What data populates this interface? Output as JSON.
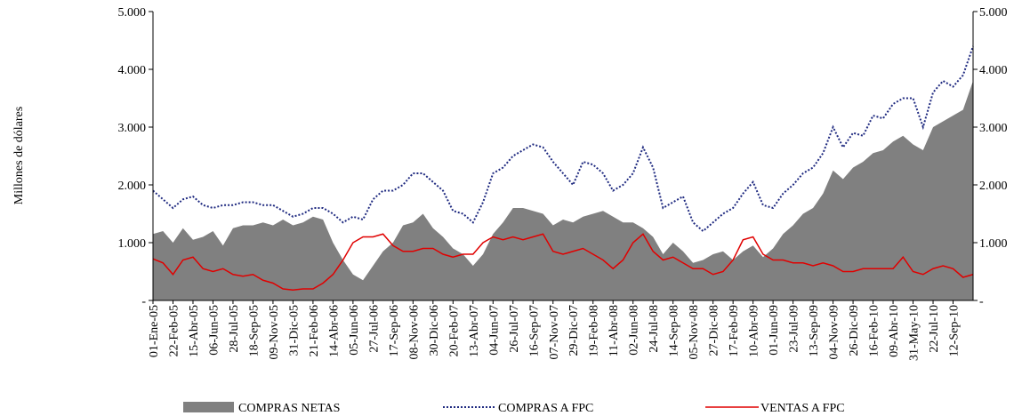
{
  "chart_data": {
    "type": "line",
    "y_label": "Millones de dólares",
    "categories": [
      "01-Ene-05",
      null,
      "22-Feb-05",
      null,
      "15-Abr-05",
      null,
      "06-Jun-05",
      null,
      "28-Jul-05",
      null,
      "18-Sep-05",
      null,
      "09-Nov-05",
      null,
      "31-Dic-05",
      null,
      "21-Feb-06",
      null,
      "14-Abr-06",
      null,
      "05-Jun-06",
      null,
      "27-Jul-06",
      null,
      "17-Sep-06",
      null,
      "08-Nov-06",
      null,
      "30-Dic-06",
      null,
      "20-Feb-07",
      null,
      "13-Abr-07",
      null,
      "04-Jun-07",
      null,
      "26-Jul-07",
      null,
      "16-Sep-07",
      null,
      "07-Nov-07",
      null,
      "29-Dic-07",
      null,
      "19-Feb-08",
      null,
      "11-Abr-08",
      null,
      "02-Jun-08",
      null,
      "24-Jul-08",
      null,
      "14-Sep-08",
      null,
      "05-Nov-08",
      null,
      "27-Dic-08",
      null,
      "17-Feb-09",
      null,
      "10-Abr-09",
      null,
      "01-Jun-09",
      null,
      "23-Jul-09",
      null,
      "13-Sep-09",
      null,
      "04-Nov-09",
      null,
      "26-Dic-09",
      null,
      "16-Feb-10",
      null,
      "09-Abr-10",
      null,
      "31-May-10",
      null,
      "22-Jul-10",
      null,
      "12-Sep-10",
      null,
      null
    ],
    "series": [
      {
        "name": "COMPRAS NETAS",
        "color": "#808080",
        "style": "area",
        "values": [
          1150,
          1200,
          1000,
          1250,
          1050,
          1100,
          1200,
          950,
          1250,
          1300,
          1300,
          1350,
          1300,
          1400,
          1300,
          1350,
          1450,
          1400,
          1000,
          700,
          450,
          350,
          600,
          850,
          1000,
          1300,
          1350,
          1500,
          1250,
          1100,
          900,
          800,
          600,
          800,
          1150,
          1350,
          1600,
          1600,
          1550,
          1500,
          1300,
          1400,
          1350,
          1450,
          1500,
          1550,
          1450,
          1350,
          1350,
          1250,
          1100,
          800,
          1000,
          850,
          650,
          700,
          800,
          850,
          700,
          850,
          950,
          750,
          900,
          1150,
          1300,
          1500,
          1600,
          1850,
          2250,
          2100,
          2300,
          2400,
          2550,
          2600,
          2750,
          2850,
          2700,
          2600,
          3000,
          3100,
          3200,
          3300,
          3800
        ]
      },
      {
        "name": "COMPRAS A FPC",
        "color": "#1f2a80",
        "style": "dotted",
        "values": [
          1900,
          1750,
          1600,
          1750,
          1800,
          1650,
          1600,
          1650,
          1650,
          1700,
          1700,
          1650,
          1650,
          1550,
          1450,
          1500,
          1600,
          1600,
          1500,
          1350,
          1450,
          1400,
          1750,
          1900,
          1900,
          2000,
          2200,
          2200,
          2050,
          1900,
          1550,
          1500,
          1350,
          1700,
          2200,
          2300,
          2500,
          2600,
          2700,
          2650,
          2400,
          2200,
          2000,
          2400,
          2350,
          2200,
          1900,
          2000,
          2200,
          2650,
          2300,
          1600,
          1700,
          1800,
          1350,
          1200,
          1350,
          1500,
          1600,
          1850,
          2050,
          1650,
          1600,
          1850,
          2000,
          2200,
          2300,
          2550,
          3000,
          2650,
          2900,
          2850,
          3200,
          3150,
          3400,
          3500,
          3500,
          3000,
          3600,
          3800,
          3700,
          3900,
          4400
        ]
      },
      {
        "name": "VENTAS A FPC",
        "color": "#e00000",
        "style": "solid",
        "values": [
          720,
          650,
          450,
          700,
          750,
          550,
          500,
          550,
          450,
          420,
          450,
          350,
          300,
          200,
          180,
          200,
          200,
          300,
          450,
          700,
          1000,
          1100,
          1100,
          1150,
          950,
          850,
          850,
          900,
          900,
          800,
          750,
          800,
          800,
          1000,
          1100,
          1050,
          1100,
          1050,
          1100,
          1150,
          850,
          800,
          850,
          900,
          800,
          700,
          550,
          700,
          1000,
          1150,
          850,
          700,
          750,
          650,
          550,
          550,
          450,
          500,
          700,
          1050,
          1100,
          800,
          700,
          700,
          650,
          650,
          600,
          650,
          600,
          500,
          500,
          550,
          550,
          550,
          550,
          750,
          500,
          450,
          550,
          600,
          550,
          400,
          450
        ]
      }
    ],
    "ylim": [
      0,
      5000
    ],
    "yticks": [
      {
        "value": 0,
        "label": "-"
      },
      {
        "value": 1000,
        "label": "1.000"
      },
      {
        "value": 2000,
        "label": "2.000"
      },
      {
        "value": 3000,
        "label": "3.000"
      },
      {
        "value": 4000,
        "label": "4.000"
      },
      {
        "value": 5000,
        "label": "5.000"
      }
    ],
    "y2lim": [
      0,
      5000
    ],
    "y2ticks": [
      {
        "value": 0,
        "label": "-"
      },
      {
        "value": 1000,
        "label": "1.000"
      },
      {
        "value": 2000,
        "label": "2.000"
      },
      {
        "value": 3000,
        "label": "3.000"
      },
      {
        "value": 4000,
        "label": "4.000"
      },
      {
        "value": 5000,
        "label": "5.000"
      }
    ],
    "legend": "bottom"
  }
}
